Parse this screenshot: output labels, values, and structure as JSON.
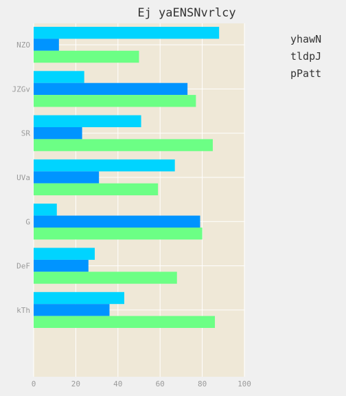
{
  "chart_data": {
    "type": "bar",
    "orientation": "horizontal",
    "title": "Ej yaENSNvrlcy",
    "xlabel": "",
    "ylabel": "",
    "categories": [
      "NZO",
      "JZGv",
      "SR",
      "UVa",
      "G",
      "DeF",
      "kTh"
    ],
    "xlim": [
      0,
      100
    ],
    "xticks": [
      0,
      20,
      40,
      60,
      80,
      100
    ],
    "grid": true,
    "legend_position": "right",
    "series": [
      {
        "name": "yhawN",
        "color": "#00d4ff",
        "values": [
          88,
          24,
          51,
          67,
          11,
          29,
          43
        ]
      },
      {
        "name": "tldpJ",
        "color": "#0094ff",
        "values": [
          12,
          73,
          23,
          31,
          79,
          26,
          36
        ]
      },
      {
        "name": "pPatt",
        "color": "#6cff85",
        "values": [
          50,
          77,
          85,
          59,
          80,
          68,
          86
        ]
      }
    ],
    "colors": {
      "plot_background": "#efe8d7",
      "page_background": "#f0f0f0",
      "grid": "#ffffff"
    }
  }
}
